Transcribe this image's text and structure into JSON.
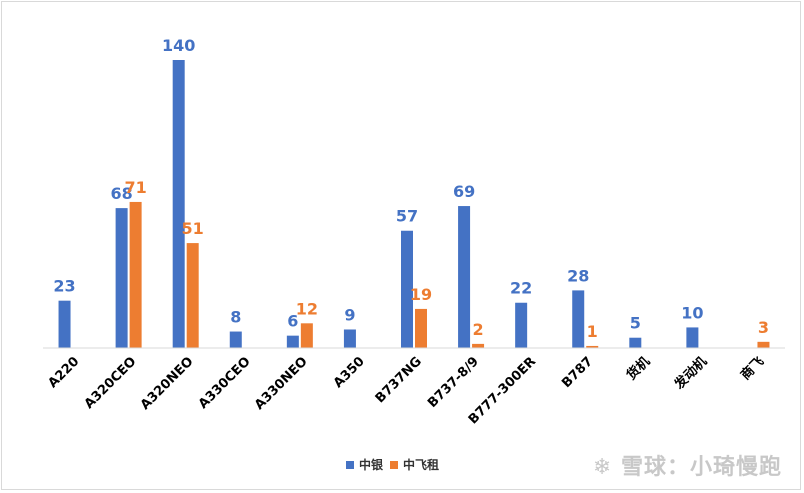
{
  "chart_data": {
    "type": "bar",
    "categories": [
      "A220",
      "A320CEO",
      "A320NEO",
      "A330CEO",
      "A330NEO",
      "A350",
      "B737NG",
      "B737-8/9",
      "B777-300ER",
      "B787",
      "货机",
      "发动机",
      "商飞"
    ],
    "series": [
      {
        "name": "中银",
        "color": "#4472c4",
        "values": [
          23,
          68,
          140,
          8,
          6,
          9,
          57,
          69,
          22,
          28,
          5,
          10,
          null
        ]
      },
      {
        "name": "中飞租",
        "color": "#ed7d31",
        "values": [
          null,
          71,
          51,
          null,
          12,
          null,
          19,
          2,
          null,
          1,
          null,
          null,
          3
        ]
      }
    ],
    "title": "",
    "xlabel": "",
    "ylabel": "",
    "ylim": [
      0,
      140
    ],
    "grid": false,
    "legend": "bottom-center",
    "data_labels": true
  },
  "watermark": "雪球：小琦慢跑"
}
